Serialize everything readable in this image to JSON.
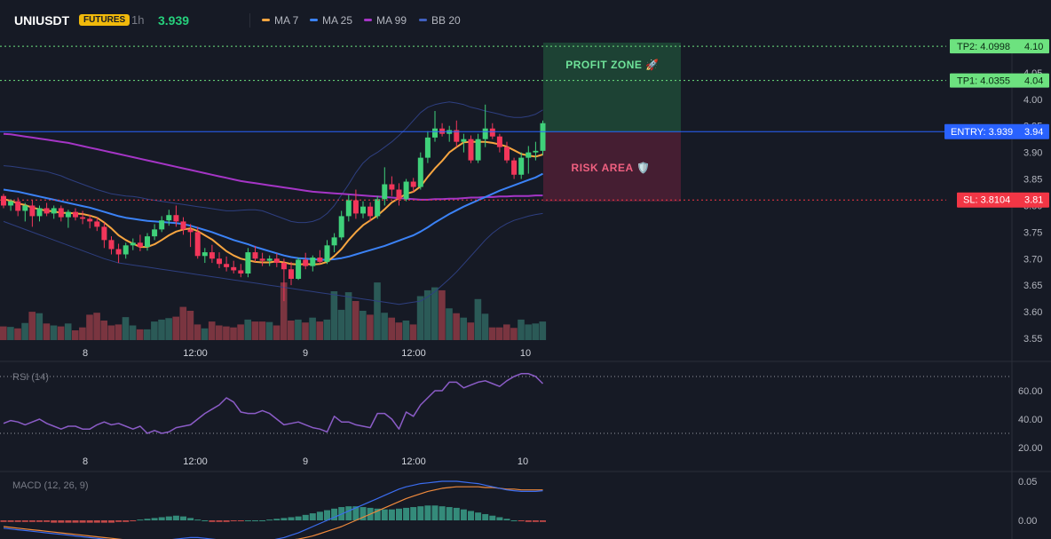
{
  "header": {
    "symbol": "UNIUSDT",
    "badge": "FUTURES",
    "timeframe": "1h",
    "price": "3.939",
    "price_color": "#26d07c"
  },
  "legend": [
    {
      "label": "MA 7",
      "color": "#f7a540"
    },
    {
      "label": "MA 25",
      "color": "#3b82f6"
    },
    {
      "label": "MA 99",
      "color": "#a535c6"
    },
    {
      "label": "BB 20",
      "color": "#4060c0"
    }
  ],
  "zones": {
    "profit_label": "PROFIT ZONE 🚀",
    "risk_label": "RISK AREA 🛡️"
  },
  "levels": [
    {
      "label": "TP2: 4.0998",
      "axis": "4.10",
      "value": 4.0998,
      "color": "#6de27f",
      "text_color": "#0b2a14"
    },
    {
      "label": "TP1: 4.0355",
      "axis": "4.04",
      "value": 4.0355,
      "color": "#6de27f",
      "text_color": "#0b2a14"
    },
    {
      "label": "ENTRY: 3.939",
      "axis": "3.94",
      "value": 3.939,
      "color": "#2962ff",
      "text_color": "#ffffff"
    },
    {
      "label": "SL: 3.8104",
      "axis": "3.81",
      "value": 3.8104,
      "color": "#f23645",
      "text_color": "#ffffff"
    }
  ],
  "chart_data": [
    {
      "type": "candlestick",
      "y_ticks": [
        "4.05",
        "4.00",
        "3.95",
        "3.90",
        "3.85",
        "3.80",
        "3.75",
        "3.70",
        "3.65",
        "3.60",
        "3.55"
      ],
      "x_ticks": [
        "8",
        "12:00",
        "9",
        "12:00",
        "10"
      ],
      "ylim": [
        3.55,
        4.1
      ],
      "candles": [
        [
          3.818,
          3.822,
          3.795,
          3.8
        ],
        [
          3.8,
          3.812,
          3.79,
          3.808
        ],
        [
          3.808,
          3.815,
          3.78,
          3.79
        ],
        [
          3.79,
          3.805,
          3.77,
          3.8
        ],
        [
          3.8,
          3.81,
          3.76,
          3.78
        ],
        [
          3.78,
          3.8,
          3.77,
          3.795
        ],
        [
          3.795,
          3.805,
          3.78,
          3.785
        ],
        [
          3.785,
          3.8,
          3.775,
          3.795
        ],
        [
          3.795,
          3.8,
          3.77,
          3.778
        ],
        [
          3.778,
          3.792,
          3.758,
          3.788
        ],
        [
          3.788,
          3.795,
          3.772,
          3.778
        ],
        [
          3.778,
          3.79,
          3.765,
          3.775
        ],
        [
          3.775,
          3.783,
          3.757,
          3.77
        ],
        [
          3.77,
          3.778,
          3.752,
          3.76
        ],
        [
          3.76,
          3.768,
          3.72,
          3.735
        ],
        [
          3.735,
          3.742,
          3.708,
          3.718
        ],
        [
          3.718,
          3.728,
          3.692,
          3.708
        ],
        [
          3.708,
          3.73,
          3.7,
          3.725
        ],
        [
          3.725,
          3.738,
          3.716,
          3.73
        ],
        [
          3.73,
          3.745,
          3.714,
          3.722
        ],
        [
          3.722,
          3.748,
          3.715,
          3.742
        ],
        [
          3.742,
          3.765,
          3.735,
          3.755
        ],
        [
          3.755,
          3.78,
          3.75,
          3.772
        ],
        [
          3.772,
          3.792,
          3.762,
          3.782
        ],
        [
          3.782,
          3.8,
          3.76,
          3.77
        ],
        [
          3.77,
          3.778,
          3.745,
          3.755
        ],
        [
          3.755,
          3.765,
          3.722,
          3.75
        ],
        [
          3.75,
          3.76,
          3.7,
          3.705
        ],
        [
          3.705,
          3.72,
          3.692,
          3.712
        ],
        [
          3.712,
          3.726,
          3.692,
          3.7
        ],
        [
          3.7,
          3.712,
          3.682,
          3.69
        ],
        [
          3.69,
          3.704,
          3.676,
          3.684
        ],
        [
          3.684,
          3.696,
          3.672,
          3.678
        ],
        [
          3.678,
          3.69,
          3.665,
          3.672
        ],
        [
          3.672,
          3.72,
          3.665,
          3.712
        ],
        [
          3.712,
          3.724,
          3.694,
          3.7
        ],
        [
          3.7,
          3.711,
          3.686,
          3.696
        ],
        [
          3.696,
          3.706,
          3.686,
          3.7
        ],
        [
          3.7,
          3.71,
          3.684,
          3.692
        ],
        [
          3.692,
          3.7,
          3.62,
          3.68
        ],
        [
          3.68,
          3.694,
          3.65,
          3.662
        ],
        [
          3.662,
          3.702,
          3.66,
          3.698
        ],
        [
          3.698,
          3.711,
          3.68,
          3.686
        ],
        [
          3.686,
          3.706,
          3.676,
          3.702
        ],
        [
          3.702,
          3.716,
          3.69,
          3.694
        ],
        [
          3.694,
          3.735,
          3.69,
          3.725
        ],
        [
          3.725,
          3.748,
          3.712,
          3.74
        ],
        [
          3.74,
          3.79,
          3.735,
          3.78
        ],
        [
          3.78,
          3.82,
          3.77,
          3.81
        ],
        [
          3.81,
          3.83,
          3.775,
          3.785
        ],
        [
          3.785,
          3.808,
          3.776,
          3.798
        ],
        [
          3.798,
          3.806,
          3.77,
          3.78
        ],
        [
          3.78,
          3.818,
          3.775,
          3.812
        ],
        [
          3.812,
          3.872,
          3.8,
          3.84
        ],
        [
          3.84,
          3.855,
          3.818,
          3.83
        ],
        [
          3.83,
          3.842,
          3.8,
          3.812
        ],
        [
          3.812,
          3.85,
          3.808,
          3.845
        ],
        [
          3.845,
          3.852,
          3.825,
          3.835
        ],
        [
          3.835,
          3.9,
          3.83,
          3.89
        ],
        [
          3.89,
          3.94,
          3.88,
          3.928
        ],
        [
          3.928,
          3.978,
          3.92,
          3.945
        ],
        [
          3.945,
          3.955,
          3.93,
          3.935
        ],
        [
          3.935,
          3.95,
          3.92,
          3.942
        ],
        [
          3.942,
          3.96,
          3.91,
          3.92
        ],
        [
          3.92,
          3.935,
          3.9,
          3.925
        ],
        [
          3.925,
          3.932,
          3.88,
          3.885
        ],
        [
          3.885,
          3.935,
          3.88,
          3.925
        ],
        [
          3.925,
          3.99,
          3.91,
          3.945
        ],
        [
          3.945,
          3.955,
          3.925,
          3.93
        ],
        [
          3.93,
          3.935,
          3.9,
          3.91
        ],
        [
          3.91,
          3.92,
          3.88,
          3.885
        ],
        [
          3.885,
          3.89,
          3.85,
          3.858
        ],
        [
          3.858,
          3.9,
          3.85,
          3.89
        ],
        [
          3.89,
          3.912,
          3.86,
          3.9
        ],
        [
          3.9,
          3.92,
          3.885,
          3.903
        ],
        [
          3.903,
          3.96,
          3.895,
          3.955
        ]
      ],
      "ma7": [
        3.812,
        3.809,
        3.804,
        3.801,
        3.796,
        3.793,
        3.79,
        3.789,
        3.786,
        3.786,
        3.785,
        3.784,
        3.781,
        3.777,
        3.768,
        3.757,
        3.744,
        3.735,
        3.728,
        3.722,
        3.722,
        3.727,
        3.735,
        3.744,
        3.751,
        3.755,
        3.757,
        3.752,
        3.744,
        3.736,
        3.725,
        3.714,
        3.706,
        3.7,
        3.697,
        3.694,
        3.693,
        3.693,
        3.695,
        3.693,
        3.69,
        3.689,
        3.69,
        3.689,
        3.69,
        3.694,
        3.705,
        3.718,
        3.735,
        3.75,
        3.763,
        3.772,
        3.781,
        3.793,
        3.806,
        3.814,
        3.822,
        3.826,
        3.836,
        3.854,
        3.87,
        3.884,
        3.9,
        3.91,
        3.919,
        3.92,
        3.92,
        3.92,
        3.918,
        3.915,
        3.911,
        3.904,
        3.897,
        3.894,
        3.892,
        3.896
      ],
      "ma25": [
        3.83,
        3.828,
        3.826,
        3.823,
        3.82,
        3.817,
        3.814,
        3.811,
        3.808,
        3.805,
        3.802,
        3.799,
        3.796,
        3.792,
        3.788,
        3.784,
        3.78,
        3.777,
        3.775,
        3.773,
        3.771,
        3.77,
        3.769,
        3.768,
        3.767,
        3.765,
        3.762,
        3.758,
        3.754,
        3.75,
        3.745,
        3.74,
        3.735,
        3.731,
        3.727,
        3.722,
        3.718,
        3.714,
        3.71,
        3.706,
        3.703,
        3.701,
        3.7,
        3.699,
        3.698,
        3.698,
        3.699,
        3.701,
        3.704,
        3.708,
        3.712,
        3.716,
        3.72,
        3.724,
        3.729,
        3.734,
        3.739,
        3.744,
        3.751,
        3.759,
        3.768,
        3.776,
        3.784,
        3.791,
        3.798,
        3.804,
        3.81,
        3.816,
        3.822,
        3.828,
        3.833,
        3.838,
        3.843,
        3.848,
        3.853,
        3.86
      ],
      "ma99": [
        3.935,
        3.934,
        3.932,
        3.93,
        3.928,
        3.926,
        3.924,
        3.922,
        3.92,
        3.918,
        3.915,
        3.912,
        3.909,
        3.906,
        3.903,
        3.9,
        3.897,
        3.894,
        3.891,
        3.888,
        3.885,
        3.882,
        3.879,
        3.876,
        3.873,
        3.87,
        3.867,
        3.864,
        3.861,
        3.858,
        3.855,
        3.852,
        3.849,
        3.846,
        3.844,
        3.842,
        3.84,
        3.838,
        3.836,
        3.834,
        3.832,
        3.83,
        3.828,
        3.826,
        3.825,
        3.824,
        3.823,
        3.822,
        3.821,
        3.82,
        3.819,
        3.818,
        3.817,
        3.816,
        3.815,
        3.814,
        3.813,
        3.812,
        3.811,
        3.811,
        3.812,
        3.812,
        3.813,
        3.813,
        3.814,
        3.815,
        3.815,
        3.816,
        3.816,
        3.817,
        3.817,
        3.818,
        3.818,
        3.818,
        3.819,
        3.819
      ],
      "bb_upper": [
        3.875,
        3.874,
        3.872,
        3.87,
        3.868,
        3.866,
        3.864,
        3.86,
        3.856,
        3.85,
        3.845,
        3.84,
        3.835,
        3.83,
        3.826,
        3.822,
        3.82,
        3.818,
        3.817,
        3.815,
        3.812,
        3.81,
        3.808,
        3.806,
        3.804,
        3.802,
        3.8,
        3.798,
        3.796,
        3.794,
        3.792,
        3.79,
        3.79,
        3.791,
        3.792,
        3.792,
        3.79,
        3.785,
        3.78,
        3.775,
        3.77,
        3.768,
        3.768,
        3.77,
        3.775,
        3.785,
        3.8,
        3.82,
        3.84,
        3.862,
        3.88,
        3.892,
        3.9,
        3.91,
        3.92,
        3.932,
        3.945,
        3.96,
        3.975,
        3.985,
        3.99,
        3.993,
        3.995,
        3.993,
        3.99,
        3.985,
        3.982,
        3.978,
        3.975,
        3.972,
        3.968,
        3.966,
        3.966,
        3.968,
        3.972,
        3.98
      ],
      "bb_lower": [
        3.77,
        3.765,
        3.76,
        3.755,
        3.75,
        3.745,
        3.74,
        3.735,
        3.73,
        3.725,
        3.72,
        3.715,
        3.71,
        3.705,
        3.7,
        3.696,
        3.692,
        3.69,
        3.688,
        3.686,
        3.684,
        3.682,
        3.68,
        3.678,
        3.676,
        3.674,
        3.672,
        3.67,
        3.668,
        3.666,
        3.664,
        3.662,
        3.66,
        3.658,
        3.656,
        3.654,
        3.652,
        3.65,
        3.648,
        3.646,
        3.644,
        3.642,
        3.64,
        3.638,
        3.636,
        3.634,
        3.632,
        3.63,
        3.628,
        3.626,
        3.624,
        3.622,
        3.62,
        3.618,
        3.616,
        3.614,
        3.616,
        3.618,
        3.62,
        3.628,
        3.638,
        3.65,
        3.662,
        3.675,
        3.69,
        3.705,
        3.72,
        3.735,
        3.748,
        3.758,
        3.766,
        3.772,
        3.776,
        3.78,
        3.783,
        3.785
      ],
      "volume": [
        0.28,
        0.27,
        0.24,
        0.35,
        0.58,
        0.55,
        0.34,
        0.3,
        0.28,
        0.34,
        0.2,
        0.26,
        0.52,
        0.56,
        0.4,
        0.3,
        0.32,
        0.47,
        0.3,
        0.22,
        0.22,
        0.38,
        0.42,
        0.45,
        0.48,
        0.68,
        0.6,
        0.32,
        0.24,
        0.38,
        0.3,
        0.28,
        0.26,
        0.32,
        0.42,
        0.38,
        0.38,
        0.37,
        0.3,
        1.18,
        0.4,
        0.42,
        0.36,
        0.46,
        0.38,
        0.42,
        1.0,
        0.62,
        0.98,
        0.8,
        0.6,
        0.52,
        1.18,
        0.56,
        0.46,
        0.36,
        0.4,
        0.32,
        0.9,
        1.02,
        1.08,
        1.02,
        0.65,
        0.55,
        0.46,
        0.36,
        0.84,
        0.54,
        0.26,
        0.26,
        0.32,
        0.25,
        0.42,
        0.32,
        0.34,
        0.38
      ]
    },
    {
      "type": "line",
      "name": "RSI (14)",
      "y_ticks": [
        "60.00",
        "40.00",
        "20.00"
      ],
      "ylim": [
        20,
        75
      ],
      "bands": [
        70,
        30
      ],
      "values": [
        37,
        39,
        38,
        36,
        38,
        40,
        37,
        35,
        33,
        35,
        35,
        33,
        33,
        36,
        38,
        36,
        37,
        35,
        33,
        35,
        30,
        32,
        30,
        31,
        34,
        35,
        36,
        40,
        44,
        47,
        50,
        55,
        52,
        45,
        44,
        44,
        46,
        44,
        40,
        36,
        37,
        38,
        36,
        34,
        33,
        31,
        42,
        38,
        38,
        36,
        35,
        34,
        44,
        44,
        40,
        33,
        45,
        42,
        50,
        55,
        60,
        60,
        66,
        66,
        62,
        64,
        66,
        67,
        65,
        63,
        67,
        70,
        72,
        72,
        70,
        65
      ]
    },
    {
      "type": "bar",
      "name": "MACD (12, 26, 9)",
      "y_ticks": [
        "0.05",
        "0.00"
      ],
      "ylim": [
        -0.03,
        0.055
      ],
      "histogram": [
        -0.002,
        -0.002,
        -0.002,
        -0.002,
        -0.002,
        -0.002,
        -0.002,
        -0.003,
        -0.003,
        -0.003,
        -0.003,
        -0.003,
        -0.003,
        -0.003,
        -0.003,
        -0.003,
        -0.002,
        -0.002,
        -0.001,
        0.001,
        0.002,
        0.003,
        0.004,
        0.005,
        0.006,
        0.005,
        0.003,
        0.001,
        0.0,
        -0.002,
        -0.002,
        -0.002,
        -0.001,
        -0.001,
        0.0,
        0.0,
        0.0,
        0.001,
        0.002,
        0.003,
        0.004,
        0.005,
        0.007,
        0.009,
        0.011,
        0.013,
        0.015,
        0.017,
        0.018,
        0.018,
        0.017,
        0.016,
        0.015,
        0.014,
        0.014,
        0.015,
        0.016,
        0.017,
        0.018,
        0.019,
        0.019,
        0.018,
        0.017,
        0.016,
        0.014,
        0.012,
        0.01,
        0.008,
        0.006,
        0.004,
        0.002,
        0.0,
        -0.001,
        -0.002,
        -0.002,
        -0.002
      ],
      "macd": [
        -0.01,
        -0.011,
        -0.012,
        -0.013,
        -0.014,
        -0.015,
        -0.016,
        -0.017,
        -0.018,
        -0.019,
        -0.02,
        -0.021,
        -0.022,
        -0.023,
        -0.024,
        -0.025,
        -0.026,
        -0.027,
        -0.028,
        -0.028,
        -0.028,
        -0.027,
        -0.026,
        -0.025,
        -0.024,
        -0.023,
        -0.022,
        -0.022,
        -0.023,
        -0.024,
        -0.025,
        -0.026,
        -0.027,
        -0.028,
        -0.028,
        -0.028,
        -0.027,
        -0.026,
        -0.024,
        -0.022,
        -0.019,
        -0.016,
        -0.012,
        -0.008,
        -0.004,
        0.0,
        0.004,
        0.008,
        0.012,
        0.016,
        0.02,
        0.024,
        0.028,
        0.032,
        0.036,
        0.04,
        0.043,
        0.045,
        0.047,
        0.048,
        0.049,
        0.05,
        0.05,
        0.05,
        0.049,
        0.048,
        0.047,
        0.045,
        0.043,
        0.041,
        0.039,
        0.038,
        0.037,
        0.037,
        0.037,
        0.038
      ],
      "signal": [
        -0.008,
        -0.009,
        -0.01,
        -0.011,
        -0.012,
        -0.013,
        -0.014,
        -0.015,
        -0.016,
        -0.017,
        -0.018,
        -0.019,
        -0.02,
        -0.021,
        -0.022,
        -0.023,
        -0.024,
        -0.025,
        -0.026,
        -0.026,
        -0.027,
        -0.027,
        -0.027,
        -0.027,
        -0.027,
        -0.026,
        -0.026,
        -0.025,
        -0.025,
        -0.025,
        -0.025,
        -0.026,
        -0.026,
        -0.027,
        -0.027,
        -0.027,
        -0.027,
        -0.027,
        -0.027,
        -0.026,
        -0.025,
        -0.024,
        -0.022,
        -0.02,
        -0.017,
        -0.014,
        -0.011,
        -0.008,
        -0.004,
        0.0,
        0.004,
        0.008,
        0.012,
        0.016,
        0.02,
        0.024,
        0.028,
        0.031,
        0.034,
        0.037,
        0.039,
        0.041,
        0.042,
        0.043,
        0.043,
        0.043,
        0.043,
        0.042,
        0.042,
        0.041,
        0.04,
        0.04,
        0.039,
        0.039,
        0.039,
        0.039
      ]
    }
  ]
}
